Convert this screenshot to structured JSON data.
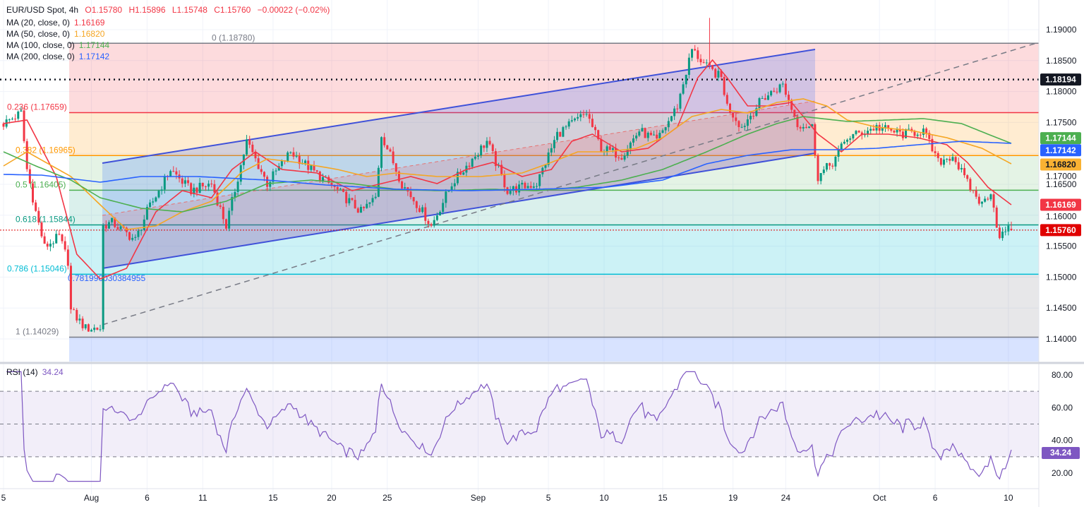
{
  "header": {
    "symbol": "EUR/USD Spot, 4h",
    "open": "O1.15780",
    "high": "H1.15896",
    "low": "L1.15748",
    "close": "C1.15760",
    "change": "−0.00022 (−0.02%)"
  },
  "indicators": [
    {
      "label": "MA (20, close, 0)",
      "value": "1.16169",
      "color": "#f23645"
    },
    {
      "label": "MA (50, close, 0)",
      "value": "1.16820",
      "color": "#f5a623"
    },
    {
      "label": "MA (100, close, 0)",
      "value": "1.17144",
      "color": "#4caf50"
    },
    {
      "label": "MA (200, close, 0)",
      "value": "1.17142",
      "color": "#2962ff"
    }
  ],
  "rsi": {
    "label": "RSI (14)",
    "value": "34.24",
    "color": "#7e57c2"
  },
  "chart_data": {
    "type": "candlestick",
    "title": "EUR/USD Spot, 4h",
    "candle_count": 345,
    "ylim": [
      1.1355,
      1.1948
    ],
    "yticks": [
      "1.19000",
      "1.18500",
      "1.18000",
      "1.17500",
      "1.17000",
      "1.16500",
      "1.16000",
      "1.15500",
      "1.15000",
      "1.14500",
      "1.14000"
    ],
    "xticks": [
      {
        "label": "5",
        "i": 0
      },
      {
        "label": "Aug",
        "i": 30
      },
      {
        "label": "6",
        "i": 49
      },
      {
        "label": "11",
        "i": 68
      },
      {
        "label": "15",
        "i": 92
      },
      {
        "label": "20",
        "i": 112
      },
      {
        "label": "25",
        "i": 131
      },
      {
        "label": "Sep",
        "i": 162
      },
      {
        "label": "5",
        "i": 186
      },
      {
        "label": "10",
        "i": 205
      },
      {
        "label": "15",
        "i": 225
      },
      {
        "label": "19",
        "i": 249
      },
      {
        "label": "24",
        "i": 267
      },
      {
        "label": "Oct",
        "i": 299
      },
      {
        "label": "6",
        "i": 318
      },
      {
        "label": "10",
        "i": 343
      }
    ],
    "close_path": [
      [
        0,
        1.17482
      ],
      [
        6,
        1.17653
      ],
      [
        8,
        1.1674
      ],
      [
        11,
        1.16055
      ],
      [
        14,
        1.15484
      ],
      [
        19,
        1.15655
      ],
      [
        22,
        1.15256
      ],
      [
        23,
        1.14457
      ],
      [
        28,
        1.14171
      ],
      [
        33,
        1.14171
      ],
      [
        34,
        1.15826
      ],
      [
        37,
        1.15884
      ],
      [
        45,
        1.15598
      ],
      [
        49,
        1.16055
      ],
      [
        57,
        1.1674
      ],
      [
        64,
        1.16397
      ],
      [
        71,
        1.16511
      ],
      [
        76,
        1.15826
      ],
      [
        83,
        1.17196
      ],
      [
        90,
        1.16511
      ],
      [
        98,
        1.17025
      ],
      [
        105,
        1.1674
      ],
      [
        114,
        1.16397
      ],
      [
        122,
        1.16055
      ],
      [
        127,
        1.16283
      ],
      [
        129,
        1.17311
      ],
      [
        136,
        1.16511
      ],
      [
        143,
        1.16055
      ],
      [
        146,
        1.15826
      ],
      [
        153,
        1.16511
      ],
      [
        165,
        1.17196
      ],
      [
        172,
        1.16397
      ],
      [
        182,
        1.16511
      ],
      [
        189,
        1.17311
      ],
      [
        199,
        1.17653
      ],
      [
        204,
        1.17082
      ],
      [
        211,
        1.16968
      ],
      [
        217,
        1.17368
      ],
      [
        223,
        1.17196
      ],
      [
        230,
        1.17767
      ],
      [
        235,
        1.1868
      ],
      [
        240,
        1.18395
      ],
      [
        245,
        1.18224
      ],
      [
        247,
        1.17767
      ],
      [
        252,
        1.17425
      ],
      [
        259,
        1.17881
      ],
      [
        266,
        1.1811
      ],
      [
        271,
        1.17482
      ],
      [
        276,
        1.17425
      ],
      [
        278,
        1.16626
      ],
      [
        283,
        1.16854
      ],
      [
        288,
        1.17253
      ],
      [
        298,
        1.17425
      ],
      [
        307,
        1.17311
      ],
      [
        314,
        1.17368
      ],
      [
        319,
        1.16854
      ],
      [
        324,
        1.16968
      ],
      [
        329,
        1.16511
      ],
      [
        334,
        1.16169
      ],
      [
        337,
        1.16397
      ],
      [
        340,
        1.15598
      ],
      [
        342,
        1.15769
      ],
      [
        344,
        1.1576
      ]
    ],
    "spikes": [
      {
        "i": 241,
        "high": 1.1919
      }
    ],
    "last": {
      "open": 1.1578,
      "high": 1.15896,
      "low": 1.15748,
      "close": 1.1576
    },
    "ma20": [
      [
        0,
        1.17482
      ],
      [
        8,
        1.17539
      ],
      [
        18,
        1.16626
      ],
      [
        25,
        1.1537
      ],
      [
        33,
        1.1497
      ],
      [
        42,
        1.15142
      ],
      [
        52,
        1.16055
      ],
      [
        61,
        1.16397
      ],
      [
        71,
        1.16283
      ],
      [
        78,
        1.1674
      ],
      [
        86,
        1.17025
      ],
      [
        95,
        1.1674
      ],
      [
        107,
        1.16683
      ],
      [
        119,
        1.16397
      ],
      [
        129,
        1.16511
      ],
      [
        139,
        1.16626
      ],
      [
        148,
        1.16511
      ],
      [
        158,
        1.1674
      ],
      [
        167,
        1.16854
      ],
      [
        177,
        1.16626
      ],
      [
        187,
        1.1674
      ],
      [
        194,
        1.17196
      ],
      [
        201,
        1.17311
      ],
      [
        211,
        1.17025
      ],
      [
        220,
        1.17082
      ],
      [
        230,
        1.17425
      ],
      [
        237,
        1.18224
      ],
      [
        242,
        1.18509
      ],
      [
        247,
        1.18224
      ],
      [
        254,
        1.17767
      ],
      [
        261,
        1.17767
      ],
      [
        269,
        1.17824
      ],
      [
        273,
        1.17596
      ],
      [
        278,
        1.17311
      ],
      [
        286,
        1.17025
      ],
      [
        293,
        1.17311
      ],
      [
        302,
        1.17311
      ],
      [
        312,
        1.17253
      ],
      [
        322,
        1.17139
      ],
      [
        329,
        1.16854
      ],
      [
        336,
        1.16454
      ],
      [
        344,
        1.16169
      ]
    ],
    "ma50": [
      [
        0,
        1.16797
      ],
      [
        8,
        1.17025
      ],
      [
        23,
        1.16626
      ],
      [
        33,
        1.16169
      ],
      [
        42,
        1.15769
      ],
      [
        52,
        1.15826
      ],
      [
        61,
        1.16055
      ],
      [
        71,
        1.16226
      ],
      [
        81,
        1.16683
      ],
      [
        90,
        1.16911
      ],
      [
        100,
        1.16854
      ],
      [
        114,
        1.1674
      ],
      [
        124,
        1.16626
      ],
      [
        134,
        1.16683
      ],
      [
        148,
        1.16626
      ],
      [
        163,
        1.16626
      ],
      [
        177,
        1.16683
      ],
      [
        187,
        1.16854
      ],
      [
        196,
        1.17025
      ],
      [
        206,
        1.17025
      ],
      [
        216,
        1.17082
      ],
      [
        225,
        1.17253
      ],
      [
        235,
        1.17596
      ],
      [
        245,
        1.1771
      ],
      [
        254,
        1.17653
      ],
      [
        264,
        1.17824
      ],
      [
        273,
        1.17881
      ],
      [
        281,
        1.17767
      ],
      [
        288,
        1.17539
      ],
      [
        298,
        1.17425
      ],
      [
        310,
        1.17368
      ],
      [
        322,
        1.17253
      ],
      [
        334,
        1.17082
      ],
      [
        344,
        1.16831
      ]
    ],
    "ma100": [
      [
        0,
        1.17025
      ],
      [
        11,
        1.16797
      ],
      [
        23,
        1.16568
      ],
      [
        33,
        1.16283
      ],
      [
        47,
        1.16112
      ],
      [
        61,
        1.16055
      ],
      [
        76,
        1.16226
      ],
      [
        90,
        1.16511
      ],
      [
        105,
        1.16568
      ],
      [
        119,
        1.16511
      ],
      [
        134,
        1.1642
      ],
      [
        148,
        1.16397
      ],
      [
        167,
        1.1642
      ],
      [
        182,
        1.16397
      ],
      [
        196,
        1.16454
      ],
      [
        211,
        1.16568
      ],
      [
        225,
        1.1674
      ],
      [
        240,
        1.17025
      ],
      [
        254,
        1.17311
      ],
      [
        264,
        1.17482
      ],
      [
        273,
        1.17596
      ],
      [
        288,
        1.17516
      ],
      [
        302,
        1.17539
      ],
      [
        314,
        1.17562
      ],
      [
        327,
        1.17482
      ],
      [
        336,
        1.17311
      ],
      [
        344,
        1.17162
      ]
    ],
    "ma200": [
      [
        0,
        1.1666
      ],
      [
        13,
        1.16648
      ],
      [
        33,
        1.16534
      ],
      [
        47,
        1.16626
      ],
      [
        66,
        1.16626
      ],
      [
        90,
        1.16568
      ],
      [
        110,
        1.16489
      ],
      [
        134,
        1.1642
      ],
      [
        158,
        1.16397
      ],
      [
        182,
        1.1642
      ],
      [
        206,
        1.16454
      ],
      [
        225,
        1.16568
      ],
      [
        240,
        1.16831
      ],
      [
        254,
        1.16968
      ],
      [
        269,
        1.17059
      ],
      [
        283,
        1.17059
      ],
      [
        298,
        1.17082
      ],
      [
        312,
        1.17139
      ],
      [
        327,
        1.17196
      ],
      [
        344,
        1.17162
      ]
    ],
    "fib": {
      "top": 1.1878,
      "bottom": 1.14029,
      "levels": [
        {
          "ratio": 0,
          "label": "0 (1.18780)",
          "price": 1.1878,
          "color": "#787b86",
          "fill": "rgba(242,54,69,0.18)"
        },
        {
          "ratio": 0.236,
          "label": "0.236 (1.17659)",
          "price": 1.17659,
          "color": "#f23645",
          "fill": "rgba(255,152,0,0.18)"
        },
        {
          "ratio": 0.382,
          "label": "0.382 (1.16965)",
          "price": 1.16965,
          "color": "#ff9800",
          "fill": "rgba(76,175,80,0.15)"
        },
        {
          "ratio": 0.5,
          "label": "0.5 (1.16405)",
          "price": 1.16405,
          "color": "#4caf50",
          "fill": "rgba(8,153,129,0.15)"
        },
        {
          "ratio": 0.618,
          "label": "0.618 (1.15844)",
          "price": 1.15844,
          "color": "#089981",
          "fill": "rgba(0,188,212,0.2)"
        },
        {
          "ratio": 0.786,
          "label": "0.786 (1.15046)",
          "price": 1.15046,
          "color": "#00bcd4",
          "fill": "rgba(120,123,134,0.18)"
        },
        {
          "ratio": 1,
          "label": "1 (1.14029)",
          "price": 1.14029,
          "color": "#787b86",
          "fill": "rgba(41,98,255,0.18)"
        }
      ],
      "extra_label": "0.781990030384955"
    },
    "hlines": [
      {
        "price": 1.18194,
        "label": "1.18194",
        "color": "#131722"
      },
      {
        "price": 1.1576,
        "label": "1.15760",
        "color": "#e00000"
      }
    ],
    "badges": [
      {
        "label": "1.17144",
        "price": 1.17144,
        "color": "#4caf50"
      },
      {
        "label": "1.17142",
        "price": 1.17142,
        "color": "#2962ff"
      },
      {
        "label": "1.16820",
        "price": 1.1682,
        "color": "#f9b233"
      },
      {
        "label": "1.16169",
        "price": 1.16169,
        "color": "#f23645"
      }
    ],
    "rsi_axis": {
      "ylim": [
        10,
        85
      ],
      "ticks": [
        "80.00",
        "60.00",
        "40.00",
        "20.00"
      ],
      "band": [
        30,
        70
      ],
      "mid": 50
    }
  }
}
